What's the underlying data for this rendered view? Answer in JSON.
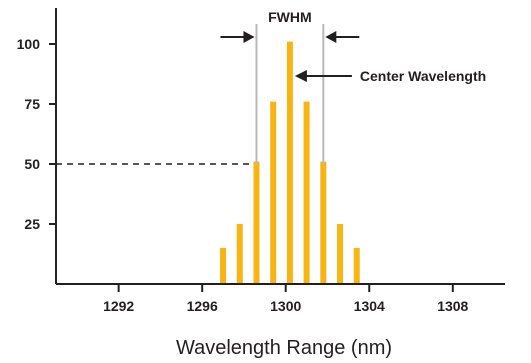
{
  "chart_data": {
    "type": "bar",
    "xlabel": "Wavelength Range (nm)",
    "ylabel": "",
    "xlim": [
      1289,
      1310.5
    ],
    "ylim": [
      0,
      115
    ],
    "x_ticks": [
      1292,
      1296,
      1300,
      1304,
      1308
    ],
    "y_ticks": [
      25,
      50,
      75,
      100
    ],
    "bar_color": "#f7b514",
    "series": [
      {
        "x": [
          1297.0,
          1297.8,
          1298.6,
          1299.4,
          1300.2,
          1301.0,
          1301.8,
          1302.6,
          1303.4
        ],
        "values": [
          15,
          25,
          51,
          76,
          101,
          76,
          51,
          25,
          15
        ]
      }
    ],
    "annotations": {
      "fwhm_label": "FWHM",
      "fwhm_range": [
        1298.6,
        1301.8
      ],
      "half_max_value": 50,
      "center_label": "Center Wavelength",
      "center_x": 1300.2
    },
    "grid": false
  }
}
